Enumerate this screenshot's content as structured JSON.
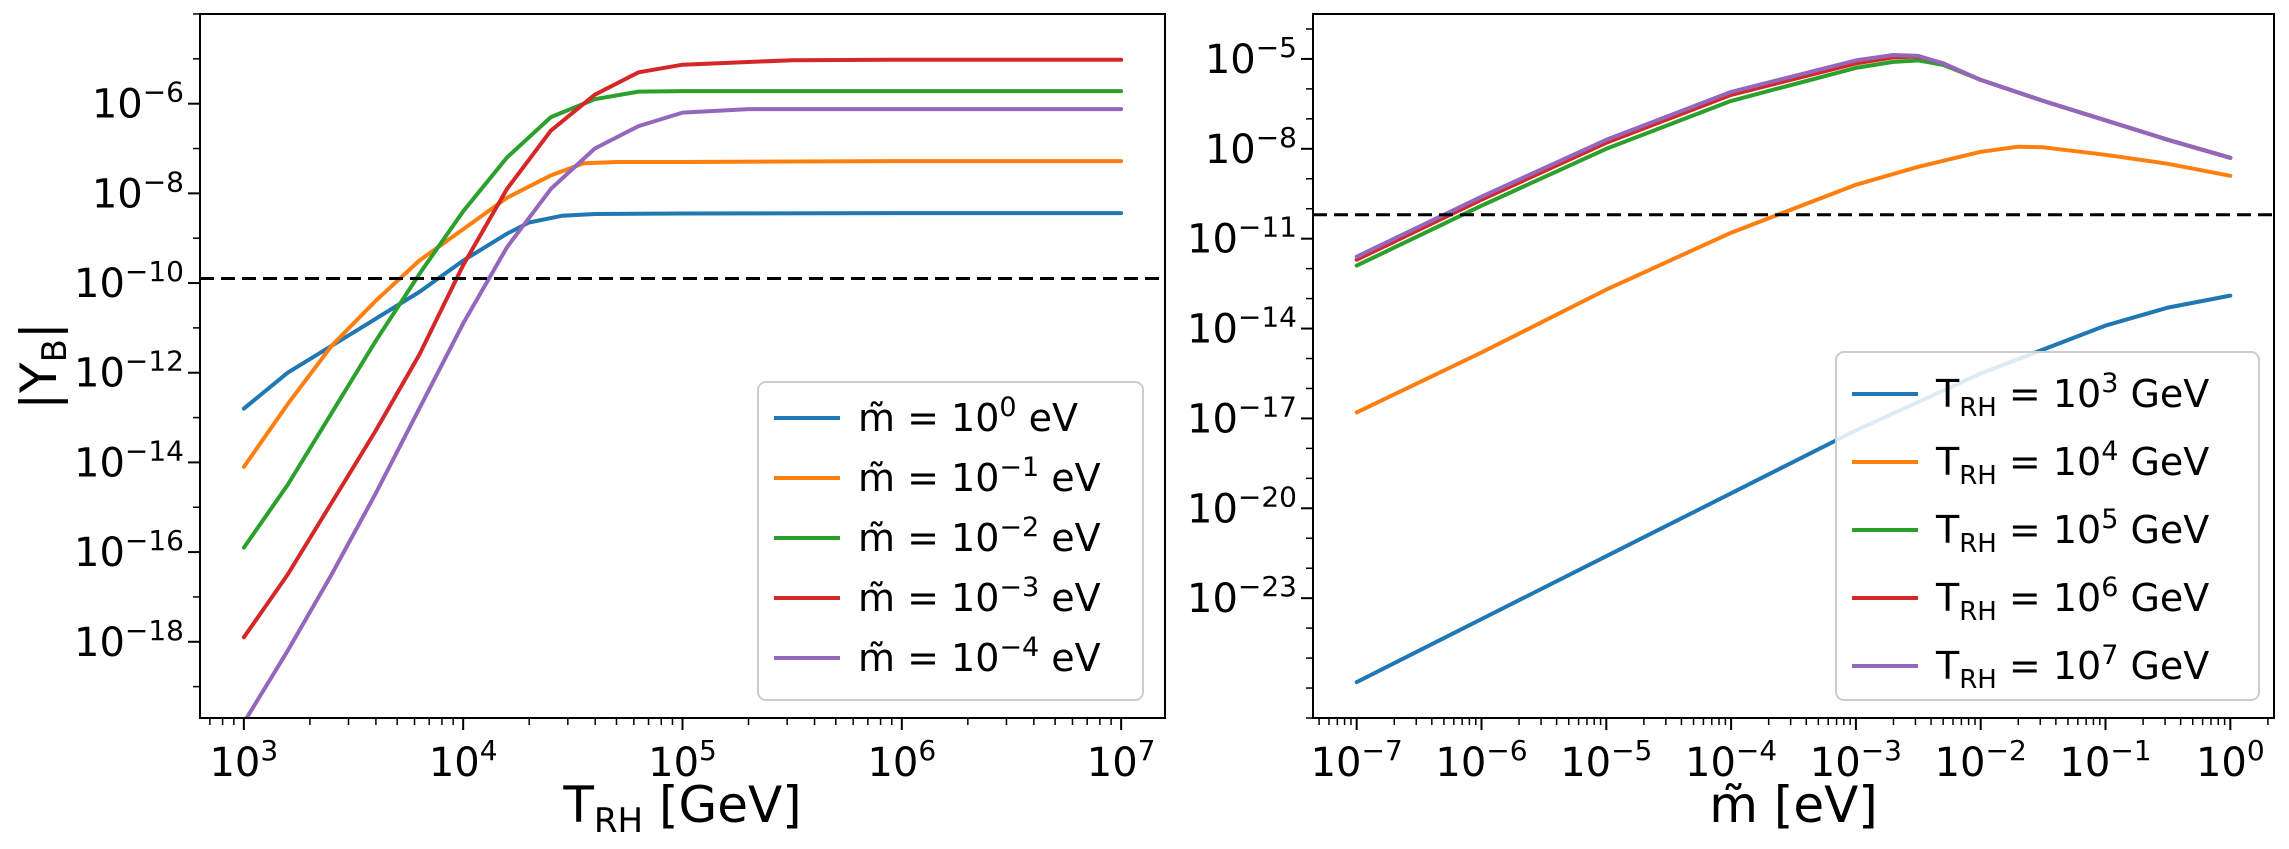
{
  "chart_data": [
    {
      "type": "line",
      "panel": "left",
      "xscale": "log",
      "yscale": "log",
      "xlim_log10": [
        2.8,
        7.2
      ],
      "ylim_log10": [
        -19.7,
        -4.0
      ],
      "xlabel": {
        "base": "T",
        "sub": "RH",
        "unit": "[GeV]"
      },
      "ylabel": {
        "pre": "|Y",
        "sub": "B",
        "post": "|"
      },
      "xticks": [
        {
          "base": "10",
          "exp": "3",
          "v": 3
        },
        {
          "base": "10",
          "exp": "4",
          "v": 4
        },
        {
          "base": "10",
          "exp": "5",
          "v": 5
        },
        {
          "base": "10",
          "exp": "6",
          "v": 6
        },
        {
          "base": "10",
          "exp": "7",
          "v": 7
        }
      ],
      "yticks": [
        {
          "base": "10",
          "exp": "−6",
          "v": -6
        },
        {
          "base": "10",
          "exp": "−8",
          "v": -8
        },
        {
          "base": "10",
          "exp": "−10",
          "v": -10
        },
        {
          "base": "10",
          "exp": "−12",
          "v": -12
        },
        {
          "base": "10",
          "exp": "−14",
          "v": -14
        },
        {
          "base": "10",
          "exp": "−16",
          "v": -16
        },
        {
          "base": "10",
          "exp": "−18",
          "v": -18
        }
      ],
      "hline_log10": -9.9,
      "legend_location": "lower right",
      "series": [
        {
          "name": "m=10^0 eV",
          "label_pre": "m̃ = 10",
          "label_exp": "0",
          "label_post": " eV",
          "color": "#1f77b4",
          "points": [
            [
              3.0,
              -12.8
            ],
            [
              3.2,
              -12.0
            ],
            [
              3.4,
              -11.4
            ],
            [
              3.6,
              -10.8
            ],
            [
              3.8,
              -10.2
            ],
            [
              4.0,
              -9.5
            ],
            [
              4.2,
              -8.9
            ],
            [
              4.3,
              -8.65
            ],
            [
              4.45,
              -8.5
            ],
            [
              4.6,
              -8.46
            ],
            [
              5.0,
              -8.45
            ],
            [
              6.0,
              -8.44
            ],
            [
              7.0,
              -8.44
            ]
          ]
        },
        {
          "name": "m=10^-1 eV",
          "label_pre": "m̃ = 10",
          "label_exp": "−1",
          "label_post": " eV",
          "color": "#ff7f0e",
          "points": [
            [
              3.0,
              -14.1
            ],
            [
              3.2,
              -12.7
            ],
            [
              3.4,
              -11.4
            ],
            [
              3.6,
              -10.4
            ],
            [
              3.8,
              -9.5
            ],
            [
              4.0,
              -8.8
            ],
            [
              4.2,
              -8.1
            ],
            [
              4.4,
              -7.6
            ],
            [
              4.55,
              -7.33
            ],
            [
              4.7,
              -7.3
            ],
            [
              5.0,
              -7.3
            ],
            [
              6.0,
              -7.28
            ],
            [
              7.0,
              -7.28
            ]
          ]
        },
        {
          "name": "m=10^-2 eV",
          "label_pre": "m̃ = 10",
          "label_exp": "−2",
          "label_post": " eV",
          "color": "#2ca02c",
          "points": [
            [
              3.0,
              -15.9
            ],
            [
              3.2,
              -14.5
            ],
            [
              3.4,
              -12.9
            ],
            [
              3.6,
              -11.3
            ],
            [
              3.8,
              -9.8
            ],
            [
              4.0,
              -8.4
            ],
            [
              4.2,
              -7.2
            ],
            [
              4.4,
              -6.3
            ],
            [
              4.6,
              -5.9
            ],
            [
              4.8,
              -5.73
            ],
            [
              5.0,
              -5.72
            ],
            [
              6.0,
              -5.72
            ],
            [
              7.0,
              -5.72
            ]
          ]
        },
        {
          "name": "m=10^-3 eV",
          "label_pre": "m̃ = 10",
          "label_exp": "−3",
          "label_post": " eV",
          "color": "#d62728",
          "points": [
            [
              3.0,
              -17.9
            ],
            [
              3.2,
              -16.5
            ],
            [
              3.4,
              -14.9
            ],
            [
              3.6,
              -13.3
            ],
            [
              3.8,
              -11.6
            ],
            [
              4.0,
              -9.6
            ],
            [
              4.2,
              -7.9
            ],
            [
              4.4,
              -6.6
            ],
            [
              4.6,
              -5.8
            ],
            [
              4.8,
              -5.3
            ],
            [
              5.0,
              -5.13
            ],
            [
              5.5,
              -5.03
            ],
            [
              6.0,
              -5.02
            ],
            [
              7.0,
              -5.02
            ]
          ]
        },
        {
          "name": "m=10^-4 eV",
          "label_pre": "m̃ = 10",
          "label_exp": "−4",
          "label_post": " eV",
          "color": "#9467bd",
          "points": [
            [
              3.0,
              -19.8
            ],
            [
              3.2,
              -18.2
            ],
            [
              3.4,
              -16.5
            ],
            [
              3.6,
              -14.7
            ],
            [
              3.8,
              -12.8
            ],
            [
              4.0,
              -10.9
            ],
            [
              4.2,
              -9.2
            ],
            [
              4.4,
              -7.9
            ],
            [
              4.6,
              -7.0
            ],
            [
              4.8,
              -6.5
            ],
            [
              5.0,
              -6.2
            ],
            [
              5.3,
              -6.12
            ],
            [
              6.0,
              -6.12
            ],
            [
              7.0,
              -6.12
            ]
          ]
        }
      ]
    },
    {
      "type": "line",
      "panel": "right",
      "xscale": "log",
      "yscale": "log",
      "xlim_log10": [
        -7.35,
        0.35
      ],
      "ylim_log10": [
        -27.0,
        -3.5
      ],
      "xlabel": {
        "base": "m̃",
        "sub": "",
        "unit": "[eV]"
      },
      "ylabel": null,
      "xticks": [
        {
          "base": "10",
          "exp": "−7",
          "v": -7
        },
        {
          "base": "10",
          "exp": "−6",
          "v": -6
        },
        {
          "base": "10",
          "exp": "−5",
          "v": -5
        },
        {
          "base": "10",
          "exp": "−4",
          "v": -4
        },
        {
          "base": "10",
          "exp": "−3",
          "v": -3
        },
        {
          "base": "10",
          "exp": "−2",
          "v": -2
        },
        {
          "base": "10",
          "exp": "−1",
          "v": -1
        },
        {
          "base": "10",
          "exp": "0",
          "v": 0
        }
      ],
      "yticks": [
        {
          "base": "10",
          "exp": "−5",
          "v": -5
        },
        {
          "base": "10",
          "exp": "−8",
          "v": -8
        },
        {
          "base": "10",
          "exp": "−11",
          "v": -11
        },
        {
          "base": "10",
          "exp": "−14",
          "v": -14
        },
        {
          "base": "10",
          "exp": "−17",
          "v": -17
        },
        {
          "base": "10",
          "exp": "−20",
          "v": -20
        },
        {
          "base": "10",
          "exp": "−23",
          "v": -23
        }
      ],
      "hline_log10": -10.2,
      "legend_location": "lower right",
      "series": [
        {
          "name": "TRH=10^3 GeV",
          "label_pre": "T",
          "label_sub": "RH",
          "label_mid": " = 10",
          "label_exp": "3",
          "label_post": " GeV",
          "color": "#1f77b4",
          "points": [
            [
              -7.0,
              -25.8
            ],
            [
              -6.0,
              -23.7
            ],
            [
              -5.0,
              -21.6
            ],
            [
              -4.0,
              -19.5
            ],
            [
              -3.0,
              -17.4
            ],
            [
              -2.0,
              -15.5
            ],
            [
              -1.0,
              -13.9
            ],
            [
              -0.5,
              -13.3
            ],
            [
              0.0,
              -12.9
            ]
          ]
        },
        {
          "name": "TRH=10^4 GeV",
          "label_pre": "T",
          "label_sub": "RH",
          "label_mid": " = 10",
          "label_exp": "4",
          "label_post": " GeV",
          "color": "#ff7f0e",
          "points": [
            [
              -7.0,
              -16.8
            ],
            [
              -6.0,
              -14.8
            ],
            [
              -5.0,
              -12.7
            ],
            [
              -4.0,
              -10.8
            ],
            [
              -3.0,
              -9.2
            ],
            [
              -2.5,
              -8.6
            ],
            [
              -2.0,
              -8.1
            ],
            [
              -1.7,
              -7.93
            ],
            [
              -1.5,
              -7.95
            ],
            [
              -1.0,
              -8.2
            ],
            [
              -0.5,
              -8.5
            ],
            [
              0.0,
              -8.9
            ]
          ]
        },
        {
          "name": "TRH=10^5 GeV",
          "label_pre": "T",
          "label_sub": "RH",
          "label_mid": " = 10",
          "label_exp": "5",
          "label_post": " GeV",
          "color": "#2ca02c",
          "points": [
            [
              -7.0,
              -11.9
            ],
            [
              -6.0,
              -9.9
            ],
            [
              -5.0,
              -8.0
            ],
            [
              -4.0,
              -6.4
            ],
            [
              -3.0,
              -5.3
            ],
            [
              -2.7,
              -5.1
            ],
            [
              -2.5,
              -5.05
            ],
            [
              -2.3,
              -5.2
            ],
            [
              -2.0,
              -5.7
            ],
            [
              -1.5,
              -6.4
            ],
            [
              -1.0,
              -7.05
            ],
            [
              -0.5,
              -7.7
            ],
            [
              0.0,
              -8.3
            ]
          ]
        },
        {
          "name": "TRH=10^6 GeV",
          "label_pre": "T",
          "label_sub": "RH",
          "label_mid": " = 10",
          "label_exp": "6",
          "label_post": " GeV",
          "color": "#d62728",
          "points": [
            [
              -7.0,
              -11.7
            ],
            [
              -6.0,
              -9.7
            ],
            [
              -5.0,
              -7.8
            ],
            [
              -4.0,
              -6.2
            ],
            [
              -3.0,
              -5.15
            ],
            [
              -2.7,
              -4.95
            ],
            [
              -2.5,
              -4.92
            ],
            [
              -2.3,
              -5.15
            ],
            [
              -2.0,
              -5.7
            ],
            [
              -1.5,
              -6.4
            ],
            [
              -1.0,
              -7.05
            ],
            [
              -0.5,
              -7.7
            ],
            [
              0.0,
              -8.3
            ]
          ]
        },
        {
          "name": "TRH=10^7 GeV",
          "label_pre": "T",
          "label_sub": "RH",
          "label_mid": " = 10",
          "label_exp": "7",
          "label_post": " GeV",
          "color": "#9467bd",
          "points": [
            [
              -7.0,
              -11.6
            ],
            [
              -6.0,
              -9.6
            ],
            [
              -5.0,
              -7.7
            ],
            [
              -4.0,
              -6.1
            ],
            [
              -3.0,
              -5.05
            ],
            [
              -2.7,
              -4.87
            ],
            [
              -2.5,
              -4.9
            ],
            [
              -2.3,
              -5.15
            ],
            [
              -2.0,
              -5.7
            ],
            [
              -1.5,
              -6.4
            ],
            [
              -1.0,
              -7.05
            ],
            [
              -0.5,
              -7.7
            ],
            [
              0.0,
              -8.3
            ]
          ]
        }
      ]
    }
  ]
}
